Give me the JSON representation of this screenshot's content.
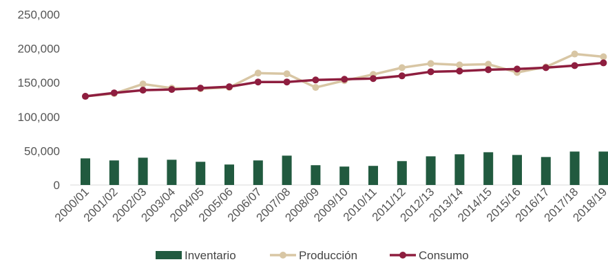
{
  "chart_data": {
    "type": "bar",
    "categories": [
      "2000/01",
      "2001/02",
      "2002/03",
      "2003/04",
      "2004/05",
      "2005/06",
      "2006/07",
      "2007/08",
      "2008/09",
      "2009/10",
      "2010/11",
      "2011/12",
      "2012/13",
      "2013/14",
      "2014/15",
      "2015/16",
      "2016/17",
      "2017/18",
      "2018/19"
    ],
    "series": [
      {
        "name": "Inventario",
        "kind": "bar",
        "color": "#215a3f",
        "values": [
          39000,
          36000,
          40000,
          37000,
          34000,
          30000,
          36000,
          43000,
          29000,
          27000,
          28000,
          35000,
          42000,
          45000,
          48000,
          44000,
          41000,
          49000,
          49000
        ]
      },
      {
        "name": "Producción",
        "kind": "line",
        "color": "#d8c6a4",
        "values": [
          130000,
          134000,
          148000,
          142000,
          141000,
          143000,
          164000,
          163000,
          143000,
          153000,
          162000,
          172000,
          178000,
          176000,
          177000,
          165000,
          173000,
          192000,
          188000
        ]
      },
      {
        "name": "Consumo",
        "kind": "line",
        "color": "#8e1e3f",
        "values": [
          130000,
          135000,
          139000,
          140000,
          142000,
          144000,
          151000,
          151000,
          154000,
          155000,
          156000,
          160000,
          166000,
          167000,
          169000,
          170000,
          172000,
          175000,
          179000
        ]
      }
    ],
    "yticks": [
      "250,000",
      "200,000",
      "150,000",
      "100,000",
      "50,000",
      "0"
    ],
    "ylim": [
      0,
      250000
    ],
    "grid": false,
    "legend_position": "bottom",
    "title": "",
    "xlabel": "",
    "ylabel": ""
  }
}
